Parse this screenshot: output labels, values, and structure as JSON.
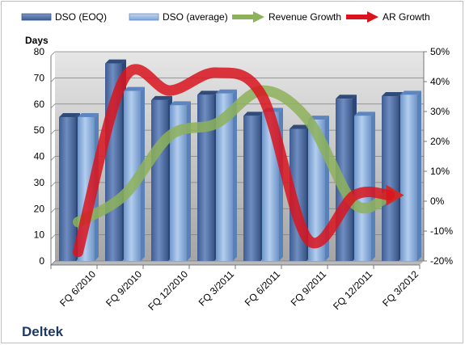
{
  "chart_data": {
    "type": "bar",
    "categories": [
      "FQ 6/2010",
      "FQ 9/2010",
      "FQ 12/2010",
      "FQ 3/2011",
      "FQ 6/2011",
      "FQ 9/2011",
      "FQ 12/2011",
      "FQ 3/2012"
    ],
    "series": [
      {
        "name": "DSO (EOQ)",
        "axis": "left",
        "kind": "bar",
        "color": "#4f6fa6",
        "values": [
          55,
          75.5,
          61.5,
          63.5,
          55.5,
          50.5,
          62,
          63
        ]
      },
      {
        "name": "DSO (average)",
        "axis": "left",
        "kind": "bar",
        "color": "#8fb1dd",
        "values": [
          55,
          65,
          59.5,
          64,
          57,
          54,
          55.5,
          63.5
        ]
      },
      {
        "name": "Revenue Growth",
        "axis": "right",
        "kind": "line",
        "color": "#8db25b",
        "values": [
          -7,
          2,
          22,
          26,
          37,
          27,
          -1,
          2
        ]
      },
      {
        "name": "AR Growth",
        "axis": "right",
        "kind": "line",
        "color": "#d9141e",
        "values": [
          -17,
          41,
          37,
          43,
          35,
          -13,
          2,
          2
        ]
      }
    ],
    "ylabel": "Days",
    "ylim": [
      0,
      80
    ],
    "yticks": [
      0,
      10,
      20,
      30,
      40,
      50,
      60,
      70,
      80
    ],
    "y2lim": [
      -20,
      50
    ],
    "y2ticks": [
      "-20%",
      "-10%",
      "0%",
      "10%",
      "20%",
      "30%",
      "40%",
      "50%"
    ],
    "legend_position": "top",
    "grid": true
  },
  "brand_label": "Deltek"
}
